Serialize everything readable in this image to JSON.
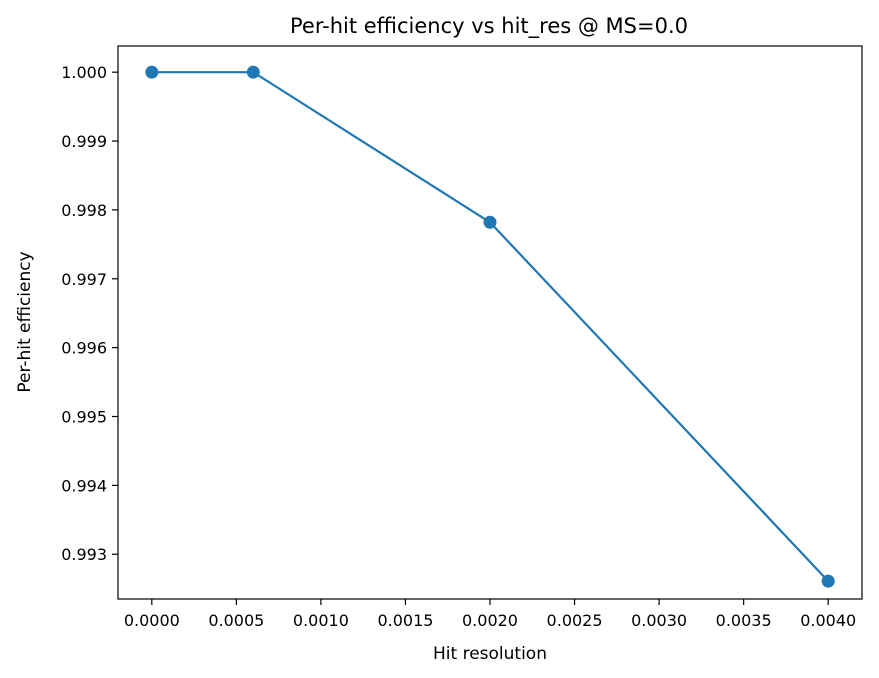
{
  "chart_data": {
    "type": "line",
    "title": "Per-hit efficiency vs hit_res @ MS=0.0",
    "xlabel": "Hit resolution",
    "ylabel": "Per-hit efficiency",
    "xlim": [
      -0.0002,
      0.0042
    ],
    "ylim": [
      0.99235,
      1.00038
    ],
    "xticks": [
      0.0,
      0.0005,
      0.001,
      0.0015,
      0.002,
      0.0025,
      0.003,
      0.0035,
      0.004
    ],
    "xtick_labels": [
      "0.0000",
      "0.0005",
      "0.0010",
      "0.0015",
      "0.0020",
      "0.0025",
      "0.0030",
      "0.0035",
      "0.0040"
    ],
    "yticks": [
      0.993,
      0.994,
      0.995,
      0.996,
      0.997,
      0.998,
      0.999,
      1.0
    ],
    "ytick_labels": [
      "0.993",
      "0.994",
      "0.995",
      "0.996",
      "0.997",
      "0.998",
      "0.999",
      "1.000"
    ],
    "grid": false,
    "series": [
      {
        "color": "#1f77b4",
        "marker": "circle",
        "x": [
          0.0,
          0.0006,
          0.002,
          0.004
        ],
        "y": [
          1.0,
          1.0,
          0.99782,
          0.99261
        ]
      }
    ]
  }
}
